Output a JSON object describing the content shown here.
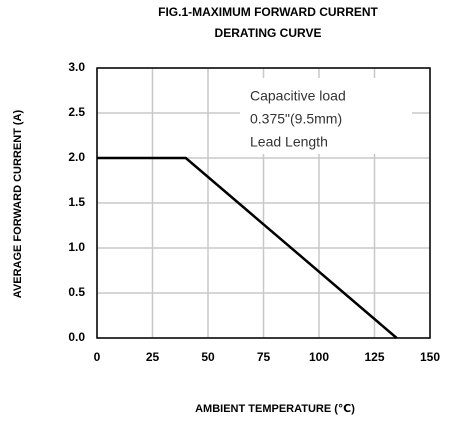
{
  "chart_data": {
    "type": "line",
    "title": [
      "FIG.1-MAXIMUM FORWARD CURRENT",
      "DERATING CURVE"
    ],
    "x_label": "AMBIENT TEMPERATURE (℃)",
    "y_label": "AVERAGE FORWARD CURRENT (A)",
    "annotations": [
      "Capacitive load",
      "0.375\"(9.5mm)",
      "Lead Length"
    ],
    "x": [
      0,
      40,
      135
    ],
    "series": [
      {
        "name": "Derating",
        "color": "#000000",
        "values": [
          2.0,
          2.0,
          0
        ]
      }
    ],
    "xlim": [
      0,
      150
    ],
    "xticks": [
      0,
      25,
      50,
      75,
      100,
      125,
      150
    ],
    "ylim": [
      0,
      3.0
    ],
    "yticks": [
      {
        "value": 0,
        "label": "0.0"
      },
      0.5,
      {
        "value": 1,
        "label": "1.0"
      },
      1.5,
      {
        "value": 2,
        "label": "2.0"
      },
      2.5,
      {
        "value": 3,
        "label": "3.0"
      }
    ],
    "grid": true
  }
}
